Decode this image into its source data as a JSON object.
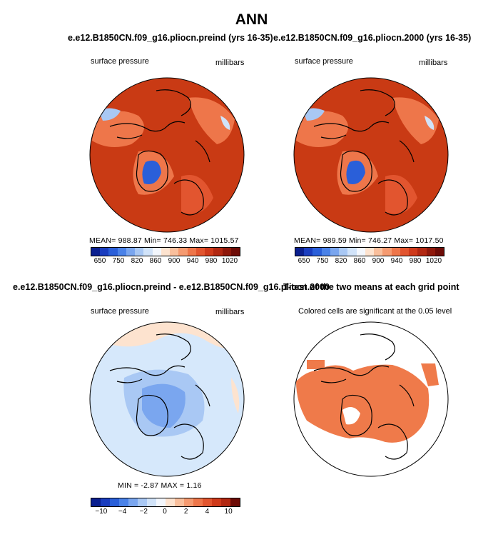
{
  "figure": {
    "title": "ANN",
    "colors": {
      "land_outline": "#000000",
      "pressure_dominant": "#c93a14",
      "significant_cell": "#ef7a4a",
      "diff_dominant": "#d6e8fb"
    }
  },
  "chart_data": [
    {
      "type": "heatmap",
      "projection": "north-polar-stereographic",
      "title": "e.e12.B1850CN.f09_g16.pliocn.preind (yrs 16-35)",
      "left_label": "surface pressure",
      "right_label": "millibars",
      "stats": {
        "mean": 988.87,
        "min": 746.33,
        "max": 1015.57
      },
      "stats_text": "MEAN= 988.87   Min= 746.33   Max= 1015.57",
      "colorbar": {
        "levels": [
          650,
          700,
          750,
          775,
          800,
          820,
          840,
          860,
          880,
          900,
          920,
          940,
          960,
          980,
          1000,
          1020
        ],
        "tick_labels": [
          "650",
          "750",
          "820",
          "860",
          "900",
          "940",
          "980",
          "1020"
        ],
        "colors": [
          "#0a1f8f",
          "#1a3dbf",
          "#2a5fd9",
          "#4a82e8",
          "#7aa6ef",
          "#a9c8f4",
          "#d1e3f9",
          "#f3f7fd",
          "#fde3cf",
          "#f9bf9c",
          "#f59a70",
          "#ee764a",
          "#e2552f",
          "#cf3a1b",
          "#b22812",
          "#8f180b",
          "#6d0c07"
        ]
      }
    },
    {
      "type": "heatmap",
      "projection": "north-polar-stereographic",
      "title": "e.e12.B1850CN.f09_g16.pliocn.2000 (yrs 16-35)",
      "left_label": "surface pressure",
      "right_label": "millibars",
      "stats": {
        "mean": 989.59,
        "min": 746.27,
        "max": 1017.5
      },
      "stats_text": "MEAN= 989.59   Min= 746.27   Max= 1017.50",
      "colorbar": {
        "levels": [
          650,
          700,
          750,
          775,
          800,
          820,
          840,
          860,
          880,
          900,
          920,
          940,
          960,
          980,
          1000,
          1020
        ],
        "tick_labels": [
          "650",
          "750",
          "820",
          "860",
          "900",
          "940",
          "980",
          "1020"
        ],
        "colors": [
          "#0a1f8f",
          "#1a3dbf",
          "#2a5fd9",
          "#4a82e8",
          "#7aa6ef",
          "#a9c8f4",
          "#d1e3f9",
          "#f3f7fd",
          "#fde3cf",
          "#f9bf9c",
          "#f59a70",
          "#ee764a",
          "#e2552f",
          "#cf3a1b",
          "#b22812",
          "#8f180b",
          "#6d0c07"
        ]
      }
    },
    {
      "type": "heatmap",
      "projection": "north-polar-stereographic",
      "title": "e.e12.B1850CN.f09_g16.pliocn.preind - e.e12.B1850CN.f09_g16.pliocn.2000",
      "left_label": "surface pressure",
      "right_label": "millibars",
      "stats": {
        "min": -2.87,
        "max": 1.16
      },
      "stats_text": "MIN =   -2.87  MAX =     1.16",
      "colorbar": {
        "levels": [
          -10,
          -8,
          -6,
          -4,
          -3,
          -2,
          -1,
          0,
          1,
          2,
          3,
          4,
          6,
          8,
          10
        ],
        "tick_labels": [
          "−10",
          "−4",
          "−2",
          "0",
          "2",
          "4",
          "10"
        ],
        "colors": [
          "#0a1f8f",
          "#1a3dbf",
          "#2a5fd9",
          "#4a82e8",
          "#7aa6ef",
          "#a9c8f4",
          "#d1e3f9",
          "#f3f7fd",
          "#fde3cf",
          "#f9bf9c",
          "#f59a70",
          "#ee764a",
          "#e2552f",
          "#cf3a1b",
          "#b22812",
          "#6d0c07"
        ]
      }
    },
    {
      "type": "heatmap",
      "projection": "north-polar-stereographic",
      "title": "T-test of the two means at each grid point",
      "subtitle": "Colored cells are significant at the 0.05 level"
    }
  ]
}
